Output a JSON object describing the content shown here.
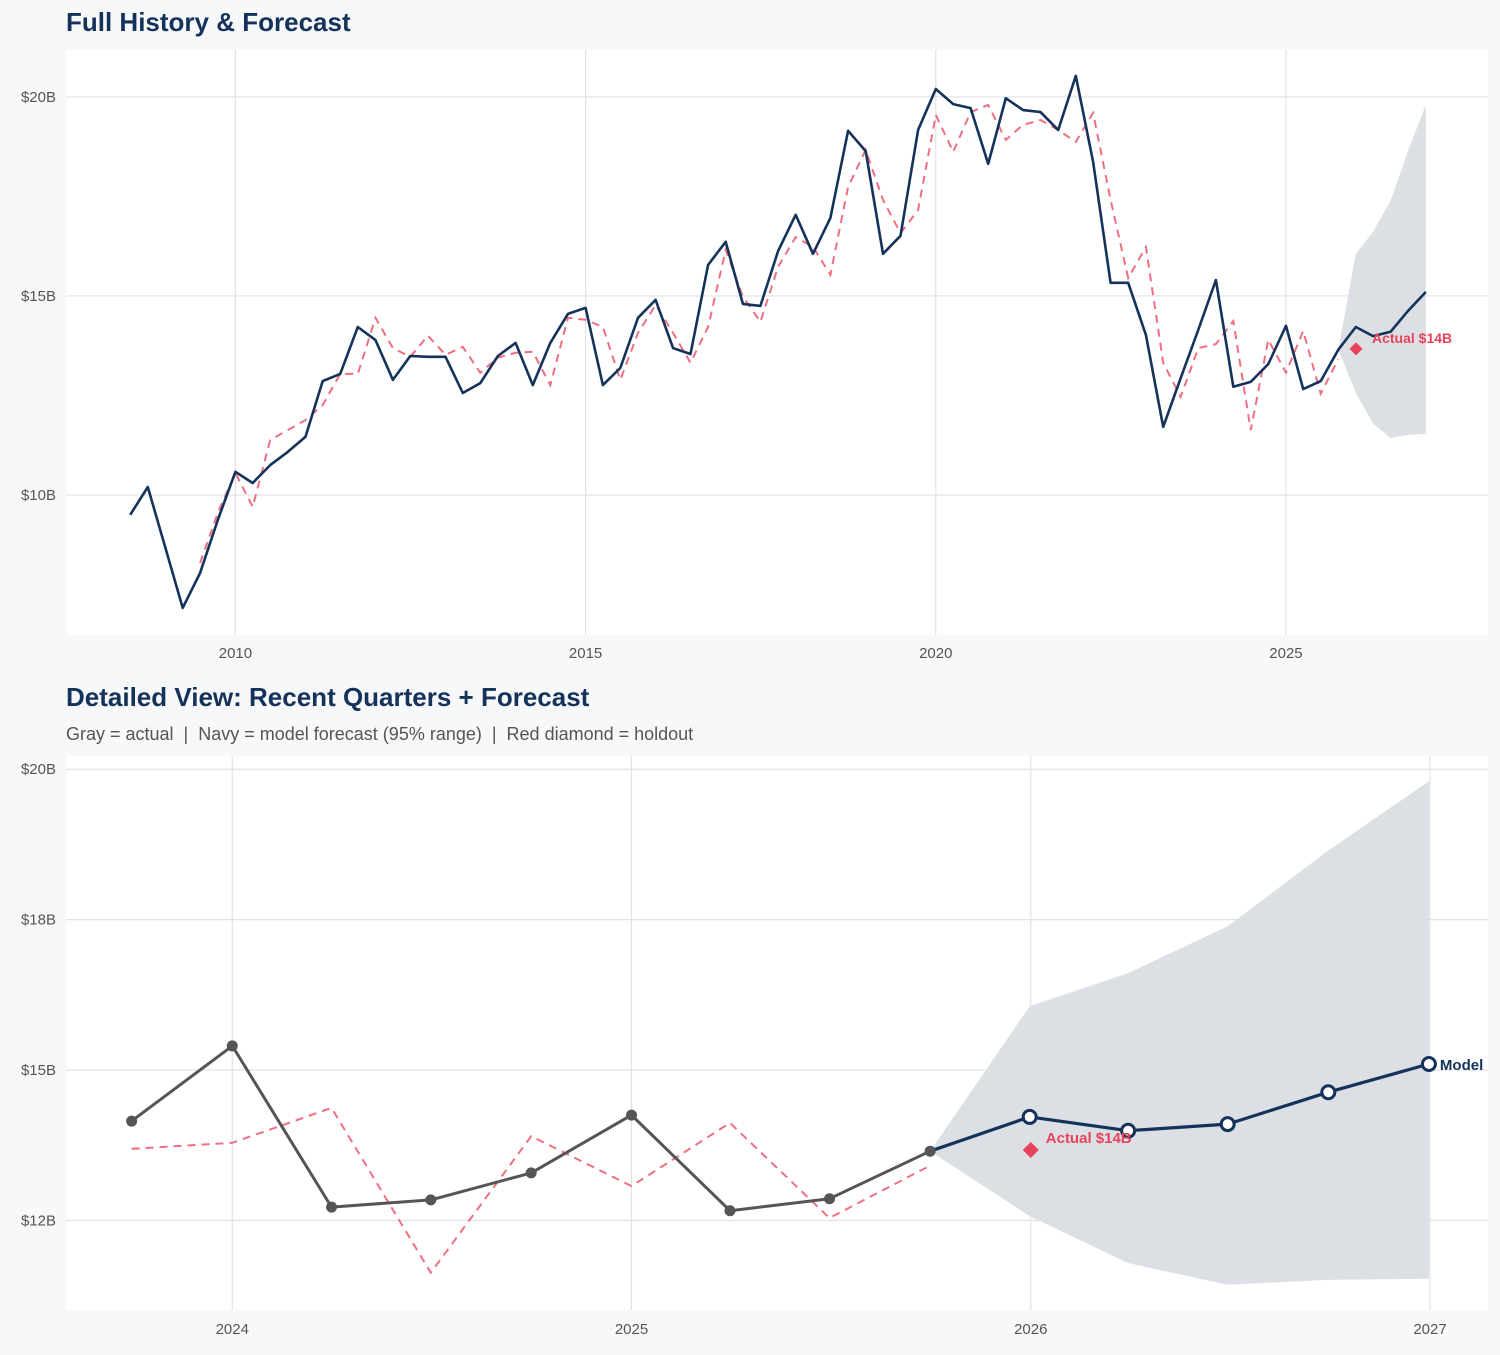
{
  "colors": {
    "background": "#f7f8fa",
    "plot_background": "#ffffff",
    "navy": "#14325a",
    "actual_gray": "#555555",
    "fitted_red": "#ef6f82",
    "holdout_red": "#e8435a",
    "band": "#dadee4",
    "grid": "#e2e2e2"
  },
  "chart_data": [
    {
      "type": "line",
      "title": "Full History & Forecast",
      "subtitle": "",
      "xlabel": "",
      "ylabel": "",
      "x_type": "date",
      "xlim": [
        "2007-08-01",
        "2027-11-20"
      ],
      "ylim": [
        6.48,
        21.18
      ],
      "grid": true,
      "x_ticks": [
        {
          "value": "2010-01-01",
          "label": "2010"
        },
        {
          "value": "2015-01-01",
          "label": "2015"
        },
        {
          "value": "2020-01-01",
          "label": "2020"
        },
        {
          "value": "2025-01-01",
          "label": "2025"
        }
      ],
      "y_ticks": [
        {
          "value": 10,
          "label": "$10B"
        },
        {
          "value": 15,
          "label": "$15B"
        },
        {
          "value": 20,
          "label": "$20B"
        }
      ],
      "history": {
        "x": [
          "2008-07-01",
          "2008-10-01",
          "2009-01-01",
          "2009-04-01",
          "2009-07-01",
          "2009-10-01",
          "2010-01-01",
          "2010-04-01",
          "2010-07-01",
          "2010-10-01",
          "2011-01-01",
          "2011-04-01",
          "2011-07-01",
          "2011-10-01",
          "2012-01-01",
          "2012-04-01",
          "2012-07-01",
          "2012-10-01",
          "2013-01-01",
          "2013-04-01",
          "2013-07-01",
          "2013-10-01",
          "2014-01-01",
          "2014-04-01",
          "2014-07-01",
          "2014-10-01",
          "2015-01-01",
          "2015-04-01",
          "2015-07-01",
          "2015-10-01",
          "2016-01-01",
          "2016-04-01",
          "2016-07-01",
          "2016-10-01",
          "2017-01-01",
          "2017-04-01",
          "2017-07-01",
          "2017-10-01",
          "2018-01-01",
          "2018-04-01",
          "2018-07-01",
          "2018-10-01",
          "2019-01-01",
          "2019-04-01",
          "2019-07-01",
          "2019-10-01",
          "2020-01-01",
          "2020-04-01",
          "2020-07-01",
          "2020-10-01",
          "2021-01-01",
          "2021-04-01",
          "2021-07-01",
          "2021-10-01",
          "2022-01-01",
          "2022-04-01",
          "2022-07-01",
          "2022-10-01",
          "2023-01-01",
          "2023-04-01",
          "2023-07-01",
          "2023-10-01",
          "2024-01-01",
          "2024-04-01",
          "2024-07-01",
          "2024-10-01",
          "2025-01-01",
          "2025-04-01",
          "2025-07-01",
          "2025-10-01"
        ],
        "y": [
          9.5,
          10.2,
          8.67,
          7.16,
          8.04,
          9.37,
          10.58,
          10.3,
          10.75,
          11.08,
          11.46,
          12.86,
          13.04,
          14.22,
          13.89,
          12.89,
          13.49,
          13.47,
          13.47,
          12.56,
          12.81,
          13.49,
          13.82,
          12.76,
          13.82,
          14.55,
          14.7,
          12.76,
          13.19,
          14.45,
          14.9,
          13.69,
          13.54,
          15.78,
          16.36,
          14.8,
          14.75,
          16.13,
          17.04,
          16.06,
          16.96,
          19.15,
          18.64,
          16.06,
          16.51,
          19.17,
          20.2,
          19.82,
          19.72,
          18.32,
          19.97,
          19.67,
          19.62,
          19.17,
          20.53,
          18.37,
          15.33,
          15.33,
          14.02,
          11.71,
          12.93,
          14.15,
          15.4,
          12.72,
          12.84,
          13.29,
          14.25,
          12.66,
          12.86,
          13.65
        ]
      },
      "fitted": {
        "x": [
          "2009-07-01",
          "2009-10-01",
          "2010-01-01",
          "2010-04-01",
          "2010-07-01",
          "2010-10-01",
          "2011-01-01",
          "2011-04-01",
          "2011-07-01",
          "2011-10-01",
          "2012-01-01",
          "2012-04-01",
          "2012-07-01",
          "2012-10-01",
          "2013-01-01",
          "2013-04-01",
          "2013-07-01",
          "2013-10-01",
          "2014-01-01",
          "2014-04-01",
          "2014-07-01",
          "2014-10-01",
          "2015-01-01",
          "2015-04-01",
          "2015-07-01",
          "2015-10-01",
          "2016-01-01",
          "2016-04-01",
          "2016-07-01",
          "2016-10-01",
          "2017-01-01",
          "2017-04-01",
          "2017-07-01",
          "2017-10-01",
          "2018-01-01",
          "2018-04-01",
          "2018-07-01",
          "2018-10-01",
          "2019-01-01",
          "2019-04-01",
          "2019-07-01",
          "2019-10-01",
          "2020-01-01",
          "2020-04-01",
          "2020-07-01",
          "2020-10-01",
          "2021-01-01",
          "2021-04-01",
          "2021-07-01",
          "2021-10-01",
          "2022-01-01",
          "2022-04-01",
          "2022-07-01",
          "2022-10-01",
          "2023-01-01",
          "2023-04-01",
          "2023-07-01",
          "2023-10-01",
          "2024-01-01",
          "2024-04-01",
          "2024-07-01",
          "2024-10-01",
          "2025-01-01",
          "2025-04-01",
          "2025-07-01",
          "2025-10-01"
        ],
        "y": [
          8.29,
          9.55,
          10.55,
          9.7,
          11.38,
          11.63,
          11.88,
          12.26,
          13.04,
          13.04,
          14.45,
          13.69,
          13.47,
          14.0,
          13.52,
          13.72,
          13.07,
          13.45,
          13.57,
          13.6,
          12.76,
          14.45,
          14.4,
          14.22,
          12.89,
          14.07,
          14.77,
          14.07,
          13.32,
          14.22,
          16.16,
          14.98,
          14.35,
          15.73,
          16.48,
          16.23,
          15.53,
          17.74,
          18.67,
          17.41,
          16.58,
          17.16,
          19.55,
          18.62,
          19.62,
          19.8,
          18.92,
          19.3,
          19.42,
          19.17,
          18.87,
          19.6,
          17.41,
          15.45,
          16.23,
          13.32,
          12.46,
          13.69,
          13.79,
          14.37,
          11.63,
          13.9,
          13.07,
          14.12,
          12.54,
          13.41
        ]
      },
      "forecast": {
        "x": [
          "2025-12-31",
          "2026-03-31",
          "2026-06-30",
          "2026-09-30",
          "2026-12-31"
        ],
        "y": [
          14.22,
          13.99,
          14.1,
          14.63,
          15.1
        ],
        "lower": [
          12.57,
          11.79,
          11.43,
          11.51,
          11.53
        ],
        "upper": [
          16.06,
          16.61,
          17.39,
          18.65,
          19.8
        ]
      },
      "holdout": {
        "x": "2026-01-01",
        "y": 13.67,
        "label": "Actual $14B"
      }
    },
    {
      "type": "line",
      "title": "Detailed View: Recent Quarters + Forecast",
      "subtitle": "Gray = actual  |  Navy = model forecast (95% range)  |  Red diamond = holdout",
      "xlabel": "",
      "ylabel": "",
      "x_type": "date",
      "xlim": [
        "2023-08-02",
        "2027-02-23"
      ],
      "ylim": [
        11.01,
        20.22
      ],
      "grid": true,
      "x_ticks": [
        {
          "value": "2024-01-01",
          "label": "2024"
        },
        {
          "value": "2025-01-01",
          "label": "2025"
        },
        {
          "value": "2026-01-01",
          "label": "2026"
        },
        {
          "value": "2027-01-01",
          "label": "2027"
        }
      ],
      "y_ticks": [
        {
          "value": 12.5,
          "label": "$12B"
        },
        {
          "value": 15,
          "label": "$15B"
        },
        {
          "value": 17.5,
          "label": "$18B"
        },
        {
          "value": 20,
          "label": "$20B"
        }
      ],
      "actual": {
        "x": [
          "2023-10-01",
          "2024-01-01",
          "2024-04-01",
          "2024-07-01",
          "2024-10-01",
          "2025-01-01",
          "2025-04-01",
          "2025-07-01",
          "2025-10-01"
        ],
        "y": [
          14.15,
          15.4,
          12.72,
          12.84,
          13.29,
          14.25,
          12.66,
          12.86,
          13.65
        ]
      },
      "fitted": {
        "x": [
          "2023-10-01",
          "2024-01-01",
          "2024-04-01",
          "2024-07-01",
          "2024-10-01",
          "2025-01-01",
          "2025-04-01",
          "2025-07-01",
          "2025-10-01"
        ],
        "y": [
          13.69,
          13.79,
          14.37,
          11.63,
          13.9,
          13.07,
          14.12,
          12.54,
          13.41
        ]
      },
      "forecast": {
        "x": [
          "2025-12-31",
          "2026-03-31",
          "2026-06-30",
          "2026-09-30",
          "2026-12-31"
        ],
        "y": [
          14.22,
          13.99,
          14.1,
          14.63,
          15.1
        ],
        "lower": [
          12.57,
          11.79,
          11.43,
          11.51,
          11.53
        ],
        "upper": [
          16.06,
          16.61,
          17.39,
          18.65,
          19.8
        ],
        "end_label": "Model"
      },
      "holdout": {
        "x": "2026-01-01",
        "y": 13.67,
        "label": "Actual $14B"
      }
    }
  ]
}
